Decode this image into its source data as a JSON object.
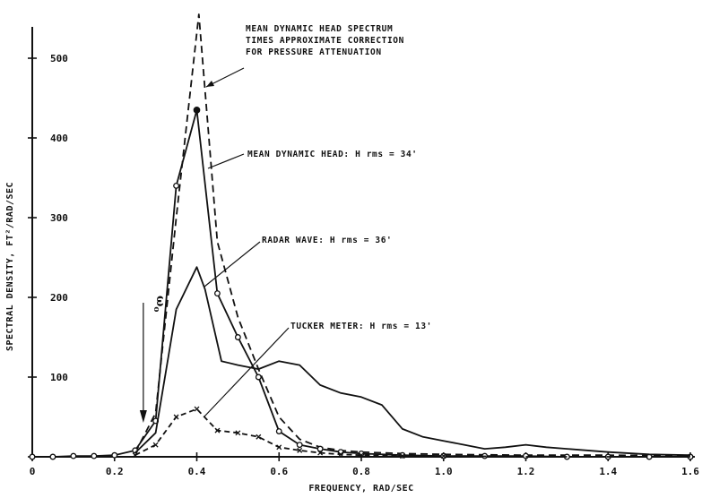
{
  "chart_data": {
    "type": "line",
    "title": "",
    "xlabel": "FREQUENCY, RAD/SEC",
    "ylabel": "SPECTRAL DENSITY, FT²/RAD/SEC",
    "xlim": [
      0,
      1.6
    ],
    "ylim": [
      0,
      500
    ],
    "x_ticks": [
      0,
      0.2,
      0.4,
      0.6,
      0.8,
      1.0,
      1.2,
      1.4,
      1.6
    ],
    "x_tick_labels": [
      "0",
      "0.2",
      "0.4",
      "0.6",
      "0.8",
      "1.0",
      "1.2",
      "1.4",
      "1.6"
    ],
    "y_ticks": [
      0,
      100,
      200,
      300,
      400,
      500
    ],
    "y_tick_labels": [
      "",
      "100",
      "200",
      "300",
      "400",
      "500"
    ],
    "grid": false,
    "marker_label": "ω",
    "marker_subscript": "o",
    "marker_x": 0.27,
    "series": [
      {
        "key": "corrected",
        "style": "dashed",
        "annotation": [
          "MEAN DYNAMIC HEAD SPECTRUM",
          "TIMES APPROXIMATE CORRECTION",
          "FOR PRESSURE ATTENUATION"
        ],
        "x": [
          0.25,
          0.3,
          0.35,
          0.405,
          0.45,
          0.5,
          0.55,
          0.6,
          0.65,
          0.7,
          0.75,
          0.8,
          0.9,
          1.0,
          1.2,
          1.4,
          1.6
        ],
        "y": [
          5,
          55,
          300,
          555,
          270,
          175,
          110,
          50,
          22,
          12,
          8,
          6,
          4,
          3,
          2,
          2,
          1
        ]
      },
      {
        "key": "mean_dynamic_head",
        "style": "solid-circles",
        "annotation": [
          "MEAN DYNAMIC HEAD:  H rms = 34'"
        ],
        "x": [
          0,
          0.05,
          0.1,
          0.15,
          0.2,
          0.25,
          0.3,
          0.35,
          0.4,
          0.45,
          0.5,
          0.55,
          0.6,
          0.65,
          0.7,
          0.75,
          0.8,
          0.9,
          1.0,
          1.1,
          1.2,
          1.3,
          1.4,
          1.5,
          1.6
        ],
        "y": [
          0,
          0,
          1,
          1,
          2,
          8,
          45,
          340,
          435,
          205,
          150,
          100,
          32,
          15,
          10,
          6,
          4,
          2,
          1,
          1,
          1,
          0,
          0,
          0,
          0
        ]
      },
      {
        "key": "radar_wave",
        "style": "solid",
        "annotation": [
          "RADAR WAVE:  H rms = 36'"
        ],
        "x": [
          0.25,
          0.3,
          0.35,
          0.4,
          0.42,
          0.46,
          0.5,
          0.55,
          0.6,
          0.65,
          0.7,
          0.75,
          0.8,
          0.85,
          0.9,
          0.95,
          1.0,
          1.05,
          1.1,
          1.15,
          1.2,
          1.25,
          1.3,
          1.4,
          1.5,
          1.6
        ],
        "y": [
          5,
          30,
          185,
          238,
          210,
          120,
          115,
          110,
          120,
          115,
          90,
          80,
          75,
          65,
          35,
          25,
          20,
          15,
          10,
          12,
          15,
          12,
          10,
          6,
          3,
          2
        ]
      },
      {
        "key": "tucker_meter",
        "style": "dashed-crosses",
        "annotation": [
          "TUCKER METER:  H rms = 13'"
        ],
        "x": [
          0.25,
          0.3,
          0.35,
          0.4,
          0.45,
          0.5,
          0.55,
          0.6,
          0.65,
          0.7,
          0.75,
          0.8,
          0.9,
          1.0,
          1.2,
          1.4,
          1.6
        ],
        "y": [
          2,
          15,
          50,
          60,
          33,
          30,
          25,
          12,
          8,
          5,
          3,
          2,
          1,
          1,
          0,
          0,
          0
        ]
      }
    ]
  }
}
